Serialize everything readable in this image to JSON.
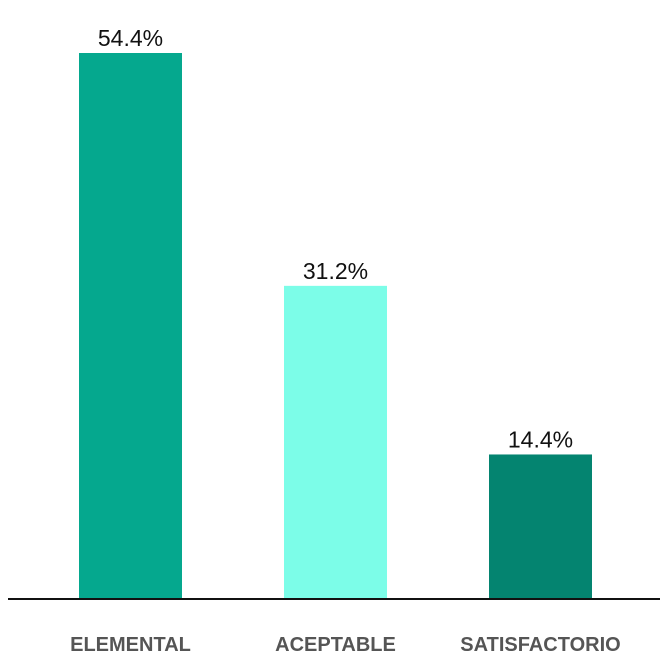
{
  "chart_data": {
    "type": "bar",
    "categories": [
      "ELEMENTAL",
      "ACEPTABLE",
      "SATISFACTORIO"
    ],
    "values": [
      54.4,
      31.2,
      14.4
    ],
    "value_labels": [
      "54.4%",
      "31.2%",
      "14.4%"
    ],
    "colors": [
      "#05a88e",
      "#7cfde8",
      "#048470"
    ],
    "ylim": [
      0,
      60
    ],
    "grid": false,
    "legend": "none"
  }
}
